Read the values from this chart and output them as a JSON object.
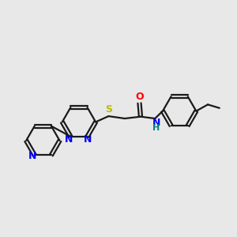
{
  "background_color": "#e8e8e8",
  "bond_color": "#1a1a1a",
  "N_color": "#0000ff",
  "S_color": "#bbbb00",
  "O_color": "#ff0000",
  "NH_color": "#008080",
  "figsize": [
    3.0,
    3.0
  ],
  "dpi": 100,
  "xlim": [
    0,
    10
  ],
  "ylim": [
    0,
    10
  ],
  "lw": 1.6,
  "font_size": 9
}
